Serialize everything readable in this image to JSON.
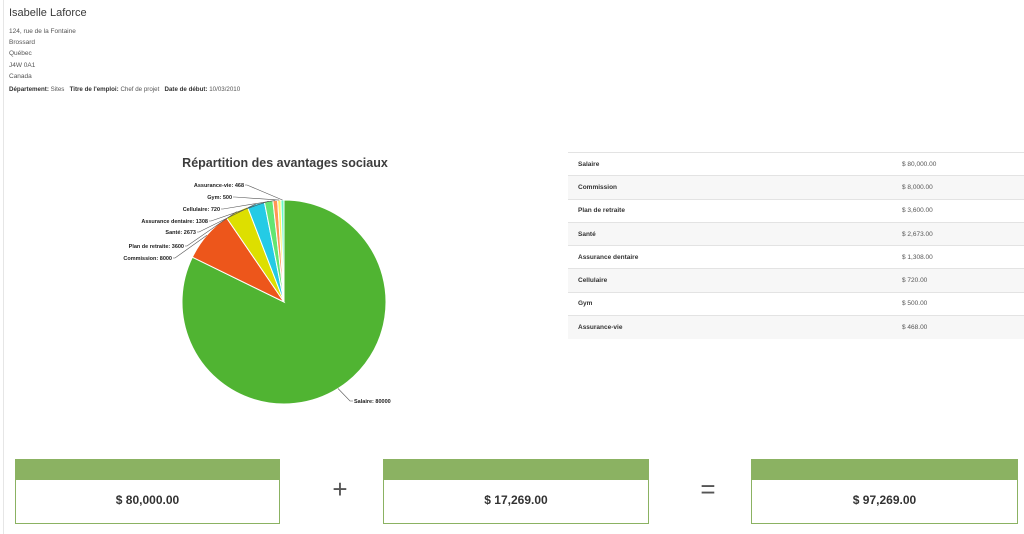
{
  "employee": {
    "name": "Isabelle Laforce",
    "address": [
      "124, rue de la Fontaine",
      "Brossard",
      "Québec",
      "J4W 0A1",
      "Canada"
    ],
    "department_label": "Département:",
    "department": "Sites",
    "job_title_label": "Titre de l'emploi:",
    "job_title": "Chef de projet",
    "start_date_label": "Date de début:",
    "start_date": "10/03/2010"
  },
  "chart_data": {
    "type": "pie",
    "title": "Répartition des avantages sociaux",
    "slices": [
      {
        "label": "Salaire",
        "value": 80000,
        "color": "#50b432"
      },
      {
        "label": "Commission",
        "value": 8000,
        "color": "#ed561b"
      },
      {
        "label": "Plan de retraite",
        "value": 3600,
        "color": "#dddf00"
      },
      {
        "label": "Santé",
        "value": 2673,
        "color": "#24cbe5"
      },
      {
        "label": "Assurance dentaire",
        "value": 1308,
        "color": "#64e572"
      },
      {
        "label": "Cellulaire",
        "value": 720,
        "color": "#ff9655"
      },
      {
        "label": "Gym",
        "value": 500,
        "color": "#fff263"
      },
      {
        "label": "Assurance-vie",
        "value": 468,
        "color": "#6af9c4"
      }
    ]
  },
  "benefits_table": [
    {
      "label": "Salaire",
      "value": "$ 80,000.00"
    },
    {
      "label": "Commission",
      "value": "$ 8,000.00"
    },
    {
      "label": "Plan de retraite",
      "value": "$ 3,600.00"
    },
    {
      "label": "Santé",
      "value": "$ 2,673.00"
    },
    {
      "label": "Assurance dentaire",
      "value": "$ 1,308.00"
    },
    {
      "label": "Cellulaire",
      "value": "$ 720.00"
    },
    {
      "label": "Gym",
      "value": "$ 500.00"
    },
    {
      "label": "Assurance-vie",
      "value": "$ 468.00"
    }
  ],
  "totals": {
    "salary": "$ 80,000.00",
    "plus": "+",
    "benefits": "$ 17,269.00",
    "equals": "=",
    "total": "$ 97,269.00"
  }
}
